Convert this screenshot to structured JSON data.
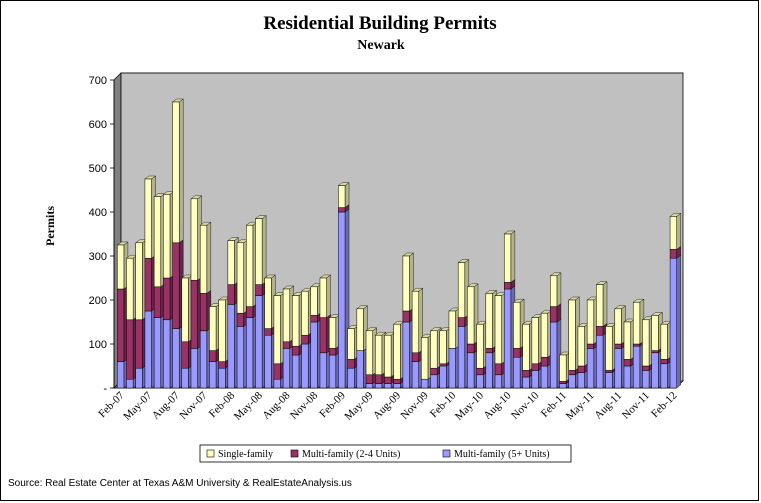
{
  "source": "Source: Real Estate Center at Texas A&M University & RealEstateAnalysis.us",
  "chart_data": {
    "type": "bar",
    "stacked": true,
    "title": "Residential Building Permits",
    "subtitle": "Newark",
    "ylabel": "Permits",
    "ylim": [
      0,
      700
    ],
    "yticks": [
      0,
      100,
      200,
      300,
      400,
      500,
      600,
      700
    ],
    "ytick_labels": [
      "-",
      "100",
      "200",
      "300",
      "400",
      "500",
      "600",
      "700"
    ],
    "grid": false,
    "legend_position": "bottom",
    "colors": {
      "plot_background": "#c0c0c0",
      "wall": "#808080",
      "single_family": "#ffffc0",
      "multi_2_4": "#993366",
      "multi_5plus": "#9999ff"
    },
    "x_tick_labels": [
      "Feb-07",
      "May-07",
      "Aug-07",
      "Nov-07",
      "Feb-08",
      "May-08",
      "Aug-08",
      "Nov-08",
      "Feb-09",
      "May-09",
      "Aug-09",
      "Nov-09",
      "Feb-10",
      "May-10",
      "Aug-10",
      "Nov-10",
      "Feb-11",
      "May-11",
      "Aug-11",
      "Nov-11",
      "Feb-12"
    ],
    "categories": [
      "Feb-07",
      "Mar-07",
      "Apr-07",
      "May-07",
      "Jun-07",
      "Jul-07",
      "Aug-07",
      "Sep-07",
      "Oct-07",
      "Nov-07",
      "Dec-07",
      "Jan-08",
      "Feb-08",
      "Mar-08",
      "Apr-08",
      "May-08",
      "Jun-08",
      "Jul-08",
      "Aug-08",
      "Sep-08",
      "Oct-08",
      "Nov-08",
      "Dec-08",
      "Jan-09",
      "Feb-09",
      "Mar-09",
      "Apr-09",
      "May-09",
      "Jun-09",
      "Jul-09",
      "Aug-09",
      "Sep-09",
      "Oct-09",
      "Nov-09",
      "Dec-09",
      "Jan-10",
      "Feb-10",
      "Mar-10",
      "Apr-10",
      "May-10",
      "Jun-10",
      "Jul-10",
      "Aug-10",
      "Sep-10",
      "Oct-10",
      "Nov-10",
      "Dec-10",
      "Jan-11",
      "Feb-11",
      "Mar-11",
      "Apr-11",
      "May-11",
      "Jun-11",
      "Jul-11",
      "Aug-11",
      "Sep-11",
      "Oct-11",
      "Nov-11",
      "Dec-11",
      "Jan-12",
      "Feb-12"
    ],
    "series": [
      {
        "name": "Multi-family (5+ Units)",
        "color": "#9999ff",
        "values": [
          60,
          20,
          45,
          175,
          160,
          155,
          135,
          45,
          90,
          130,
          60,
          45,
          190,
          140,
          160,
          210,
          120,
          20,
          90,
          75,
          100,
          150,
          80,
          75,
          400,
          45,
          85,
          10,
          10,
          10,
          10,
          150,
          60,
          20,
          30,
          50,
          90,
          140,
          80,
          30,
          80,
          30,
          225,
          70,
          25,
          40,
          50,
          150,
          10,
          30,
          35,
          90,
          120,
          35,
          90,
          50,
          95,
          40,
          80,
          55,
          295
        ]
      },
      {
        "name": "Multi-family (2-4 Units)",
        "color": "#993366",
        "values": [
          165,
          135,
          110,
          120,
          70,
          95,
          195,
          60,
          155,
          85,
          25,
          15,
          45,
          30,
          25,
          25,
          15,
          35,
          15,
          20,
          20,
          15,
          80,
          15,
          10,
          20,
          0,
          20,
          20,
          15,
          10,
          25,
          20,
          0,
          15,
          5,
          0,
          20,
          20,
          15,
          10,
          25,
          15,
          20,
          15,
          15,
          20,
          35,
          5,
          10,
          15,
          10,
          20,
          5,
          10,
          15,
          5,
          10,
          5,
          10,
          20
        ]
      },
      {
        "name": "Single-family",
        "color": "#ffffc0",
        "values": [
          100,
          140,
          175,
          180,
          205,
          190,
          320,
          145,
          185,
          155,
          100,
          140,
          100,
          160,
          185,
          150,
          115,
          155,
          120,
          115,
          100,
          65,
          90,
          70,
          50,
          70,
          95,
          100,
          90,
          95,
          125,
          125,
          140,
          95,
          85,
          75,
          85,
          125,
          130,
          100,
          125,
          155,
          110,
          105,
          105,
          105,
          100,
          70,
          60,
          160,
          90,
          100,
          95,
          100,
          80,
          85,
          95,
          105,
          80,
          80,
          75
        ]
      }
    ]
  }
}
